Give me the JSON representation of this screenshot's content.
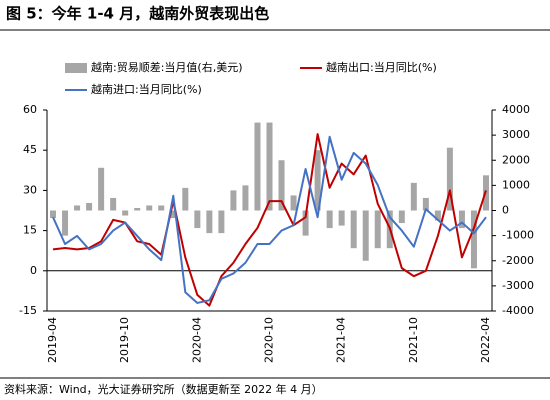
{
  "chart_data": {
    "type": "bar-line",
    "title": "图 5：今年 1-4 月，越南外贸表现出色",
    "source": "资料来源：Wind，光大证券研究所（数据更新至 2022 年 4 月）",
    "categories": [
      "2019-04",
      null,
      null,
      null,
      null,
      null,
      "2019-10",
      null,
      null,
      null,
      null,
      null,
      "2020-04",
      null,
      null,
      null,
      null,
      null,
      "2020-10",
      null,
      null,
      null,
      null,
      null,
      "2021-04",
      null,
      null,
      null,
      null,
      null,
      "2021-10",
      null,
      null,
      null,
      null,
      null,
      "2022-04"
    ],
    "ylim": [
      -15,
      60
    ],
    "yticks": [
      -15,
      0,
      15,
      30,
      45,
      60
    ],
    "y2lim": [
      -4000,
      4000
    ],
    "y2ticks": [
      -4000,
      -3000,
      -2000,
      -1000,
      0,
      1000,
      2000,
      3000,
      4000
    ],
    "series": [
      {
        "name": "越南:贸易顺差:当月值(右,美元)",
        "type": "bar",
        "axis": "y2",
        "color": "#a6a6a6",
        "values": [
          -300,
          -1000,
          200,
          300,
          1700,
          500,
          -200,
          100,
          200,
          200,
          -300,
          900,
          -700,
          -900,
          -900,
          800,
          1000,
          3500,
          3500,
          2000,
          600,
          -1000,
          2400,
          -700,
          -600,
          -1500,
          -2000,
          -1500,
          -1500,
          -500,
          1100,
          500,
          -400,
          2500,
          -700,
          -2300,
          1400
        ]
      },
      {
        "name": "越南出口:当月同比(%)",
        "type": "line",
        "color": "#c00000",
        "values": [
          8,
          8.5,
          8,
          8.5,
          11,
          19,
          18,
          11,
          10,
          6,
          26,
          5,
          -9,
          -13,
          -2,
          3,
          10,
          16,
          26,
          26,
          17,
          20,
          51,
          31,
          40,
          36,
          43,
          25,
          16,
          1,
          -2,
          0,
          13,
          30,
          5,
          16,
          30
        ]
      },
      {
        "name": "越南进口:当月同比(%)",
        "type": "line",
        "color": "#4472c4",
        "values": [
          20,
          10,
          13,
          8,
          10,
          15,
          18,
          13,
          8,
          4,
          28,
          -8,
          -12,
          -11,
          -3,
          -1,
          3,
          10,
          10,
          15,
          17,
          38,
          20,
          50,
          34,
          44,
          40,
          32,
          20,
          15,
          9,
          23,
          19,
          15,
          18,
          14,
          20
        ]
      }
    ]
  }
}
